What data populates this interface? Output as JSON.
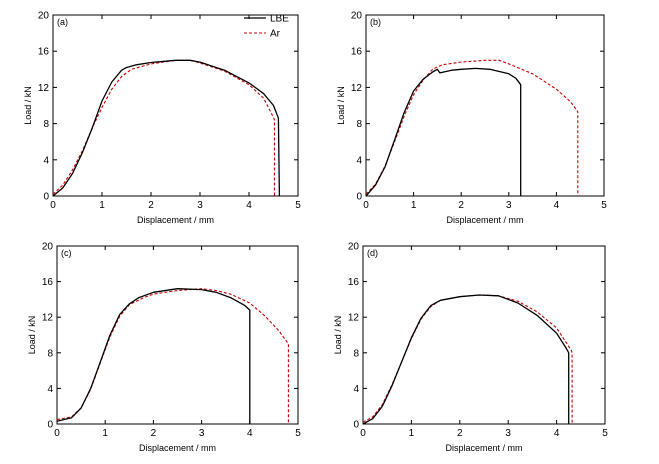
{
  "legend": [
    {
      "name": "LBE",
      "color": "#000000",
      "dash": "solid"
    },
    {
      "name": "Ar",
      "color": "#cc0000",
      "dash": "dashed"
    }
  ],
  "chart_data": [
    {
      "type": "line",
      "panel_label": "(a)",
      "xlabel": "Displacement / mm",
      "ylabel": "Load / kN",
      "xlim": [
        0,
        5
      ],
      "ylim": [
        0,
        20
      ],
      "xticks": [
        "0",
        "1",
        "2",
        "3",
        "4",
        "5"
      ],
      "yticks": [
        "0",
        "4",
        "8",
        "12",
        "16",
        "20"
      ],
      "legend_position": "top-right",
      "series": [
        {
          "name": "LBE",
          "color": "#000000",
          "points": [
            [
              0,
              0
            ],
            [
              0.2,
              0.9
            ],
            [
              0.4,
              2.5
            ],
            [
              0.6,
              4.8
            ],
            [
              0.8,
              7.5
            ],
            [
              1.0,
              10.5
            ],
            [
              1.2,
              12.6
            ],
            [
              1.4,
              13.9
            ],
            [
              1.5,
              14.2
            ],
            [
              1.7,
              14.5
            ],
            [
              2.0,
              14.75
            ],
            [
              2.5,
              15.0
            ],
            [
              2.8,
              15.0
            ],
            [
              3.0,
              14.8
            ],
            [
              3.5,
              13.9
            ],
            [
              4.0,
              12.5
            ],
            [
              4.3,
              11.3
            ],
            [
              4.5,
              10.0
            ],
            [
              4.6,
              8.6
            ],
            [
              4.62,
              0
            ]
          ]
        },
        {
          "name": "Ar",
          "color": "#cc0000",
          "points": [
            [
              0,
              0.2
            ],
            [
              0.2,
              1.2
            ],
            [
              0.4,
              2.9
            ],
            [
              0.6,
              5.0
            ],
            [
              0.8,
              7.5
            ],
            [
              1.0,
              9.8
            ],
            [
              1.2,
              11.8
            ],
            [
              1.4,
              13.2
            ],
            [
              1.6,
              14.0
            ],
            [
              2.0,
              14.6
            ],
            [
              2.5,
              15.0
            ],
            [
              2.8,
              15.0
            ],
            [
              3.0,
              14.7
            ],
            [
              3.5,
              13.8
            ],
            [
              4.0,
              12.3
            ],
            [
              4.3,
              10.8
            ],
            [
              4.45,
              9.2
            ],
            [
              4.52,
              8.4
            ],
            [
              4.52,
              0
            ]
          ]
        }
      ]
    },
    {
      "type": "line",
      "panel_label": "(b)",
      "xlabel": "Displacement / mm",
      "ylabel": "Load / kN",
      "xlim": [
        0,
        5
      ],
      "ylim": [
        0,
        20
      ],
      "xticks": [
        "0",
        "1",
        "2",
        "3",
        "4",
        "5"
      ],
      "yticks": [
        "0",
        "4",
        "8",
        "12",
        "16",
        "20"
      ],
      "series": [
        {
          "name": "LBE",
          "color": "#000000",
          "points": [
            [
              0,
              0
            ],
            [
              0.2,
              1.2
            ],
            [
              0.4,
              3.2
            ],
            [
              0.6,
              6.2
            ],
            [
              0.8,
              9.2
            ],
            [
              1.0,
              11.6
            ],
            [
              1.2,
              12.9
            ],
            [
              1.4,
              13.7
            ],
            [
              1.5,
              14.0
            ],
            [
              1.55,
              13.6
            ],
            [
              1.8,
              13.9
            ],
            [
              2.0,
              14.0
            ],
            [
              2.3,
              14.1
            ],
            [
              2.6,
              14.0
            ],
            [
              3.0,
              13.5
            ],
            [
              3.15,
              13.0
            ],
            [
              3.25,
              12.3
            ],
            [
              3.25,
              0
            ]
          ]
        },
        {
          "name": "Ar",
          "color": "#cc0000",
          "points": [
            [
              0,
              0.2
            ],
            [
              0.2,
              1.3
            ],
            [
              0.4,
              3.3
            ],
            [
              0.6,
              6.0
            ],
            [
              0.8,
              8.8
            ],
            [
              1.0,
              11.2
            ],
            [
              1.2,
              12.8
            ],
            [
              1.4,
              14.0
            ],
            [
              1.6,
              14.5
            ],
            [
              2.0,
              14.8
            ],
            [
              2.5,
              15.0
            ],
            [
              2.8,
              15.0
            ],
            [
              3.0,
              14.6
            ],
            [
              3.5,
              13.5
            ],
            [
              4.0,
              11.8
            ],
            [
              4.3,
              10.4
            ],
            [
              4.45,
              9.3
            ],
            [
              4.45,
              0
            ]
          ]
        }
      ]
    },
    {
      "type": "line",
      "panel_label": "(c)",
      "xlabel": "Displacement / mm",
      "ylabel": "Load / kN",
      "xlim": [
        0,
        5
      ],
      "ylim": [
        0,
        20
      ],
      "xticks": [
        "0",
        "1",
        "2",
        "3",
        "4",
        "5"
      ],
      "yticks": [
        "0",
        "4",
        "8",
        "12",
        "16",
        "20"
      ],
      "series": [
        {
          "name": "LBE",
          "color": "#000000",
          "points": [
            [
              0,
              0.3
            ],
            [
              0.3,
              0.7
            ],
            [
              0.5,
              1.8
            ],
            [
              0.7,
              4.0
            ],
            [
              0.9,
              7.0
            ],
            [
              1.1,
              10.0
            ],
            [
              1.3,
              12.3
            ],
            [
              1.5,
              13.5
            ],
            [
              1.7,
              14.2
            ],
            [
              2.0,
              14.8
            ],
            [
              2.5,
              15.2
            ],
            [
              3.0,
              15.1
            ],
            [
              3.3,
              14.8
            ],
            [
              3.6,
              14.2
            ],
            [
              3.9,
              13.3
            ],
            [
              4.0,
              12.8
            ],
            [
              4.0,
              0
            ]
          ]
        },
        {
          "name": "Ar",
          "color": "#cc0000",
          "points": [
            [
              0,
              0.5
            ],
            [
              0.3,
              0.8
            ],
            [
              0.5,
              1.8
            ],
            [
              0.7,
              3.9
            ],
            [
              0.9,
              6.9
            ],
            [
              1.1,
              9.8
            ],
            [
              1.3,
              12.1
            ],
            [
              1.5,
              13.4
            ],
            [
              1.8,
              14.2
            ],
            [
              2.0,
              14.6
            ],
            [
              2.5,
              15.0
            ],
            [
              3.0,
              15.2
            ],
            [
              3.3,
              15.0
            ],
            [
              3.6,
              14.6
            ],
            [
              4.0,
              13.6
            ],
            [
              4.3,
              12.2
            ],
            [
              4.6,
              10.5
            ],
            [
              4.8,
              9.0
            ],
            [
              4.8,
              0
            ]
          ]
        }
      ]
    },
    {
      "type": "line",
      "panel_label": "(d)",
      "xlabel": "Displacement / mm",
      "ylabel": "Load / kN",
      "xlim": [
        0,
        5
      ],
      "ylim": [
        0,
        20
      ],
      "xticks": [
        "0",
        "1",
        "2",
        "3",
        "4",
        "5"
      ],
      "yticks": [
        "0",
        "4",
        "8",
        "12",
        "16",
        "20"
      ],
      "series": [
        {
          "name": "LBE",
          "color": "#000000",
          "points": [
            [
              0,
              0
            ],
            [
              0.2,
              0.6
            ],
            [
              0.4,
              2.0
            ],
            [
              0.6,
              4.3
            ],
            [
              0.8,
              7.0
            ],
            [
              1.0,
              9.7
            ],
            [
              1.2,
              11.9
            ],
            [
              1.4,
              13.3
            ],
            [
              1.6,
              13.9
            ],
            [
              2.0,
              14.3
            ],
            [
              2.4,
              14.5
            ],
            [
              2.8,
              14.4
            ],
            [
              3.2,
              13.6
            ],
            [
              3.6,
              12.2
            ],
            [
              4.0,
              10.2
            ],
            [
              4.2,
              8.5
            ],
            [
              4.25,
              8.0
            ],
            [
              4.25,
              0
            ]
          ]
        },
        {
          "name": "Ar",
          "color": "#cc0000",
          "points": [
            [
              0,
              0.2
            ],
            [
              0.2,
              0.8
            ],
            [
              0.4,
              2.2
            ],
            [
              0.6,
              4.4
            ],
            [
              0.8,
              7.0
            ],
            [
              1.0,
              9.6
            ],
            [
              1.2,
              11.8
            ],
            [
              1.4,
              13.2
            ],
            [
              1.6,
              13.9
            ],
            [
              2.0,
              14.3
            ],
            [
              2.4,
              14.5
            ],
            [
              2.8,
              14.4
            ],
            [
              3.2,
              13.8
            ],
            [
              3.6,
              12.6
            ],
            [
              4.0,
              10.8
            ],
            [
              4.3,
              8.3
            ],
            [
              4.32,
              8.0
            ],
            [
              4.32,
              0
            ]
          ]
        }
      ]
    }
  ]
}
